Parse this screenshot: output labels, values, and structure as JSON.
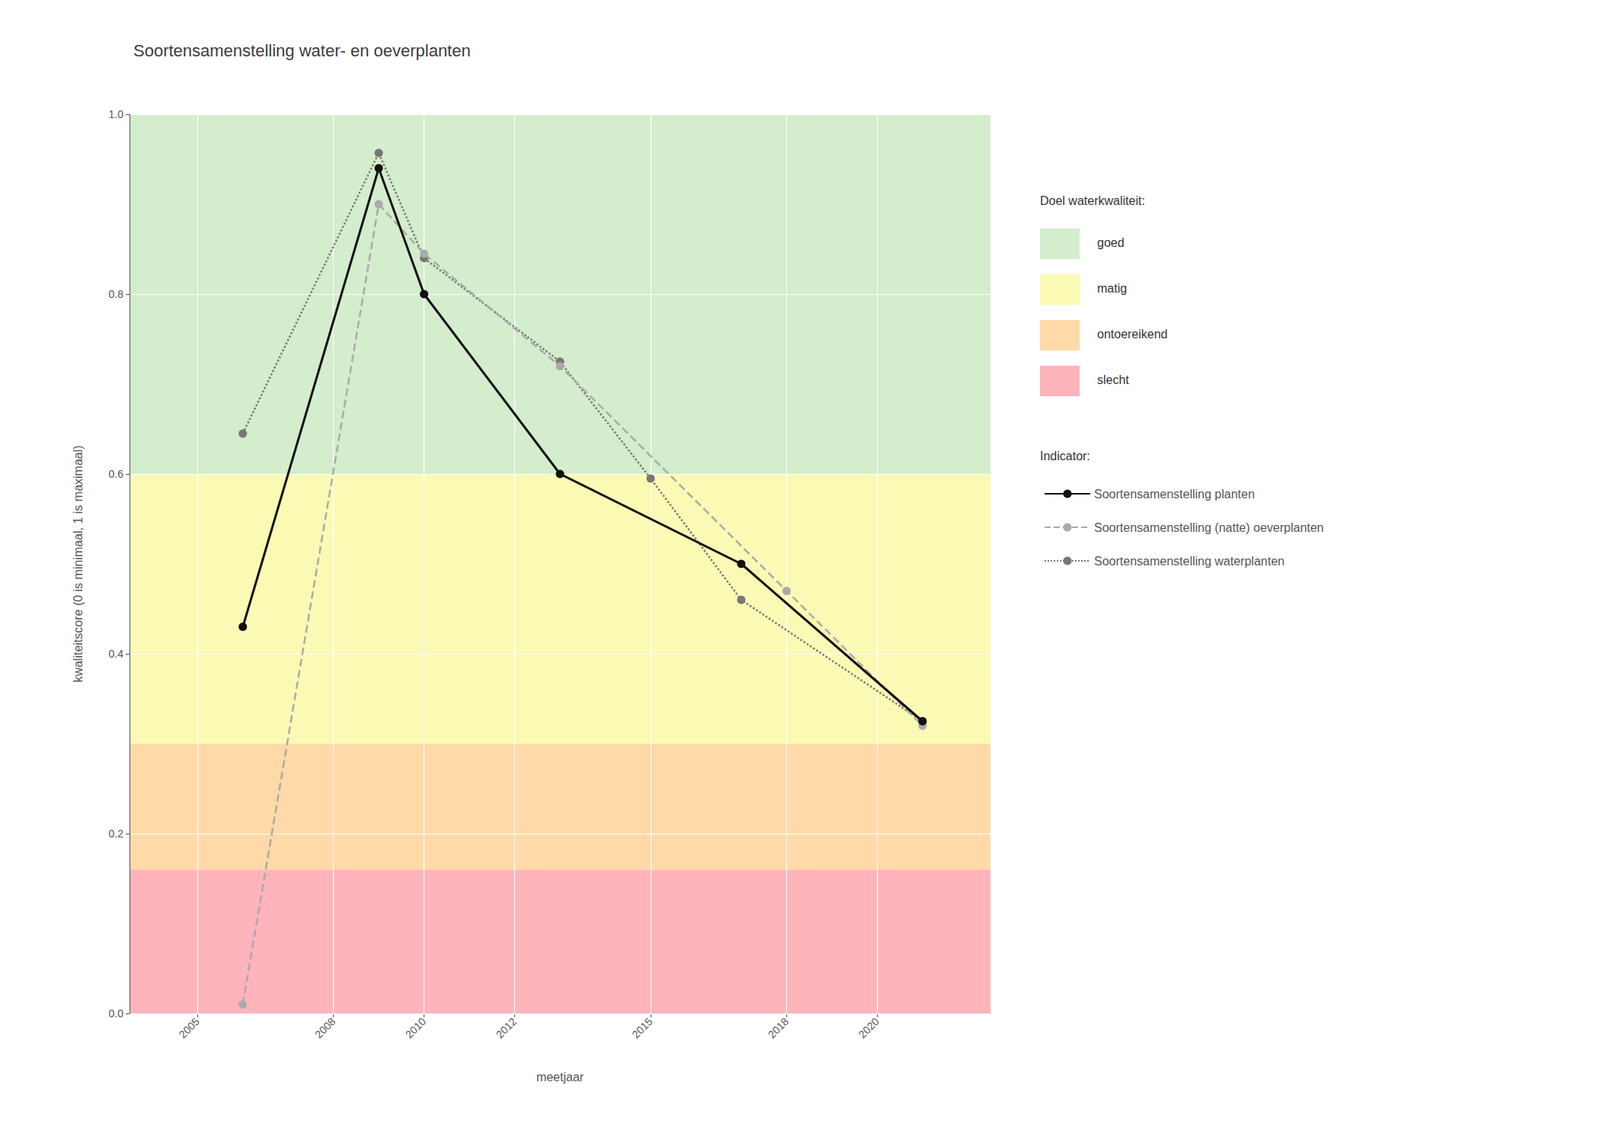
{
  "chart_data": {
    "type": "line",
    "title": "Soortensamenstelling water- en oeverplanten",
    "x_label": "meetjaar",
    "y_label": "kwaliteitscore (0 is minimaal, 1 is maximaal)",
    "xlim": [
      2003.5,
      2022.5
    ],
    "ylim": [
      0.0,
      1.0
    ],
    "xticks": [
      2005,
      2008,
      2010,
      2012,
      2015,
      2018,
      2020
    ],
    "yticks": [
      {
        "value": 0.0,
        "label": "0.0"
      },
      0.2,
      0.4,
      0.6,
      0.8,
      {
        "value": 1.0,
        "label": "1.0"
      }
    ],
    "grid": true,
    "band_legend_title": "Doel waterkwaliteit:",
    "series_legend_title": "Indicator:",
    "bands": [
      {
        "name": "goed",
        "from": 0.6,
        "to": 1.0,
        "color": "#D4EDCC"
      },
      {
        "name": "matig",
        "from": 0.3,
        "to": 0.6,
        "color": "#FAFAB4"
      },
      {
        "name": "ontoereikend",
        "from": 0.16,
        "to": 0.3,
        "color": "#FFD9A8"
      },
      {
        "name": "slecht",
        "from": 0.0,
        "to": 0.16,
        "color": "#FFB3BA"
      }
    ],
    "series": [
      {
        "name": "Soortensamenstelling planten",
        "color": "#111111",
        "line_style": "solid",
        "marker": "circle",
        "x": [
          2006,
          2009,
          2010,
          2013,
          2017,
          2021
        ],
        "values": [
          0.43,
          0.94,
          0.8,
          0.6,
          0.5,
          0.325
        ]
      },
      {
        "name": "Soortensamenstelling (natte) oeverplanten",
        "color": "#AAAAAA",
        "line_style": "dashed",
        "marker": "circle",
        "x": [
          2006,
          2009,
          2010,
          2013,
          2018,
          2021
        ],
        "values": [
          0.01,
          0.9,
          0.845,
          0.72,
          0.47,
          0.32
        ]
      },
      {
        "name": "Soortensamenstelling waterplanten",
        "color": "#777777",
        "line_style": "dotted",
        "marker": "circle",
        "x": [
          2006,
          2009,
          2010,
          2013,
          2015,
          2017,
          2021
        ],
        "values": [
          0.645,
          0.957,
          0.84,
          0.725,
          0.595,
          0.46,
          0.325
        ]
      }
    ]
  }
}
